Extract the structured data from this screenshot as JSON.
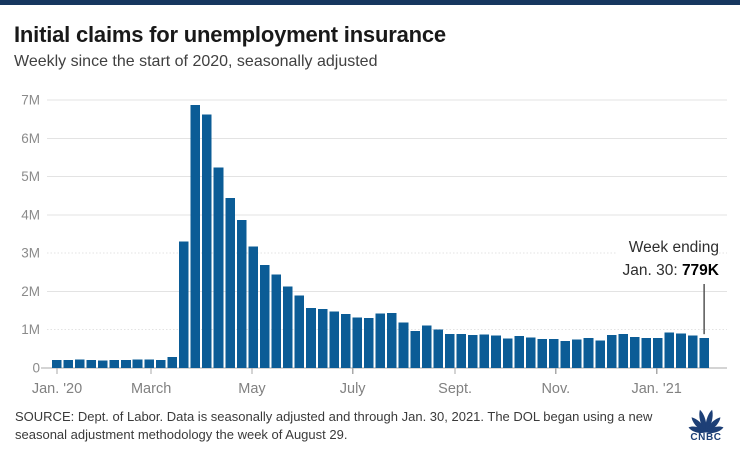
{
  "header": {
    "title": "Initial claims for unemployment insurance",
    "subtitle": "Weekly since the start of 2020, seasonally adjusted"
  },
  "chart_data": {
    "type": "bar",
    "title": "Initial claims for unemployment insurance",
    "subtitle": "Weekly since the start of 2020, seasonally adjusted",
    "xlabel": "",
    "ylabel": "",
    "grid": "horizontal",
    "legend": "none",
    "bar_color": "#0b5c96",
    "axis_color": "#a9a9a9",
    "gridline_color": "#e3e3e3",
    "ylim": [
      0,
      7000000
    ],
    "y_ticks": [
      {
        "label": "0",
        "value": 0
      },
      {
        "label": "1M",
        "value": 1000000
      },
      {
        "label": "2M",
        "value": 2000000
      },
      {
        "label": "3M",
        "value": 3000000
      },
      {
        "label": "4M",
        "value": 4000000
      },
      {
        "label": "5M",
        "value": 5000000
      },
      {
        "label": "6M",
        "value": 6000000
      },
      {
        "label": "7M",
        "value": 7000000
      }
    ],
    "x_ticks": [
      {
        "label": "Jan. '20",
        "week_offset": 0
      },
      {
        "label": "March",
        "week_offset": 8.14
      },
      {
        "label": "May",
        "week_offset": 16.86
      },
      {
        "label": "July",
        "week_offset": 25.57
      },
      {
        "label": "Sept.",
        "week_offset": 34.43
      },
      {
        "label": "Nov.",
        "week_offset": 43.14
      },
      {
        "label": "Jan. '21",
        "week_offset": 51.86
      }
    ],
    "categories": [
      "2020-01-04",
      "2020-01-11",
      "2020-01-18",
      "2020-01-25",
      "2020-02-01",
      "2020-02-08",
      "2020-02-15",
      "2020-02-22",
      "2020-02-29",
      "2020-03-07",
      "2020-03-14",
      "2020-03-21",
      "2020-03-28",
      "2020-04-04",
      "2020-04-11",
      "2020-04-18",
      "2020-04-25",
      "2020-05-02",
      "2020-05-09",
      "2020-05-16",
      "2020-05-23",
      "2020-05-30",
      "2020-06-06",
      "2020-06-13",
      "2020-06-20",
      "2020-06-27",
      "2020-07-04",
      "2020-07-11",
      "2020-07-18",
      "2020-07-25",
      "2020-08-01",
      "2020-08-08",
      "2020-08-15",
      "2020-08-22",
      "2020-08-29",
      "2020-09-05",
      "2020-09-12",
      "2020-09-19",
      "2020-09-26",
      "2020-10-03",
      "2020-10-10",
      "2020-10-17",
      "2020-10-24",
      "2020-10-31",
      "2020-11-07",
      "2020-11-14",
      "2020-11-21",
      "2020-11-28",
      "2020-12-05",
      "2020-12-12",
      "2020-12-19",
      "2020-12-26",
      "2021-01-02",
      "2021-01-09",
      "2021-01-16",
      "2021-01-23",
      "2021-01-30"
    ],
    "values": [
      214000,
      207000,
      220000,
      212000,
      201000,
      204000,
      215000,
      220000,
      217000,
      211000,
      282000,
      3307000,
      6867000,
      6615000,
      5237000,
      4442000,
      3867000,
      3176000,
      2687000,
      2446000,
      2123000,
      1897000,
      1566000,
      1540000,
      1482000,
      1408000,
      1314000,
      1308000,
      1422000,
      1435000,
      1191000,
      971000,
      1104000,
      1011000,
      884000,
      893000,
      866000,
      873000,
      849000,
      767000,
      842000,
      797000,
      758000,
      757000,
      711000,
      748000,
      787000,
      716000,
      862000,
      892000,
      806000,
      782000,
      784000,
      926000,
      900000,
      847000,
      779000
    ],
    "annotation": {
      "line1": "Week ending",
      "line2_prefix": "Jan. 30: ",
      "value": "779K",
      "points_to": "2021-01-30",
      "line_color": "#555555"
    }
  },
  "footer": {
    "source_text": "SOURCE: Dept. of Labor. Data is seasonally adjusted and through Jan. 30, 2021. The DOL began using a new seasonal adjustment methodology the week of August 29.",
    "logo_name": "cnbc-peacock-logo",
    "logo_text": "CNBC",
    "logo_color": "#1d3f76"
  }
}
